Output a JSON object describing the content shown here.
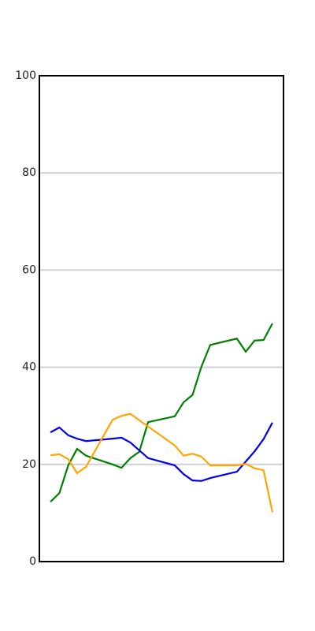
{
  "chart_data": {
    "type": "line",
    "x": [
      0,
      1,
      2,
      3,
      4,
      7,
      8,
      9,
      10,
      11,
      14,
      15,
      16,
      17,
      18,
      21,
      22,
      23,
      24,
      25
    ],
    "xlim": [
      -1.25,
      26.25
    ],
    "ylim": [
      0,
      100
    ],
    "yticks": [
      0,
      20,
      40,
      60,
      80,
      100
    ],
    "grid": true,
    "series": [
      {
        "color": "#008000",
        "values": [
          12.3,
          14.1,
          19.8,
          23.2,
          21.8,
          20.0,
          19.3,
          21.3,
          22.6,
          28.7,
          29.9,
          32.8,
          34.3,
          40.1,
          44.6,
          45.9,
          43.2,
          45.5,
          45.6,
          49.0
        ]
      },
      {
        "color": "#0000ee",
        "values": [
          26.6,
          27.6,
          26.0,
          25.3,
          24.8,
          25.3,
          25.5,
          24.5,
          22.9,
          21.3,
          19.8,
          18.0,
          16.7,
          16.6,
          17.2,
          18.5,
          20.6,
          22.7,
          25.2,
          28.6
        ]
      },
      {
        "color": "#ffa500",
        "values": [
          21.9,
          22.1,
          21.1,
          18.2,
          19.5,
          29.2,
          30.0,
          30.4,
          29.1,
          27.8,
          23.9,
          21.8,
          22.2,
          21.6,
          19.8,
          19.8,
          20.1,
          19.2,
          18.8,
          10.2
        ]
      }
    ]
  }
}
